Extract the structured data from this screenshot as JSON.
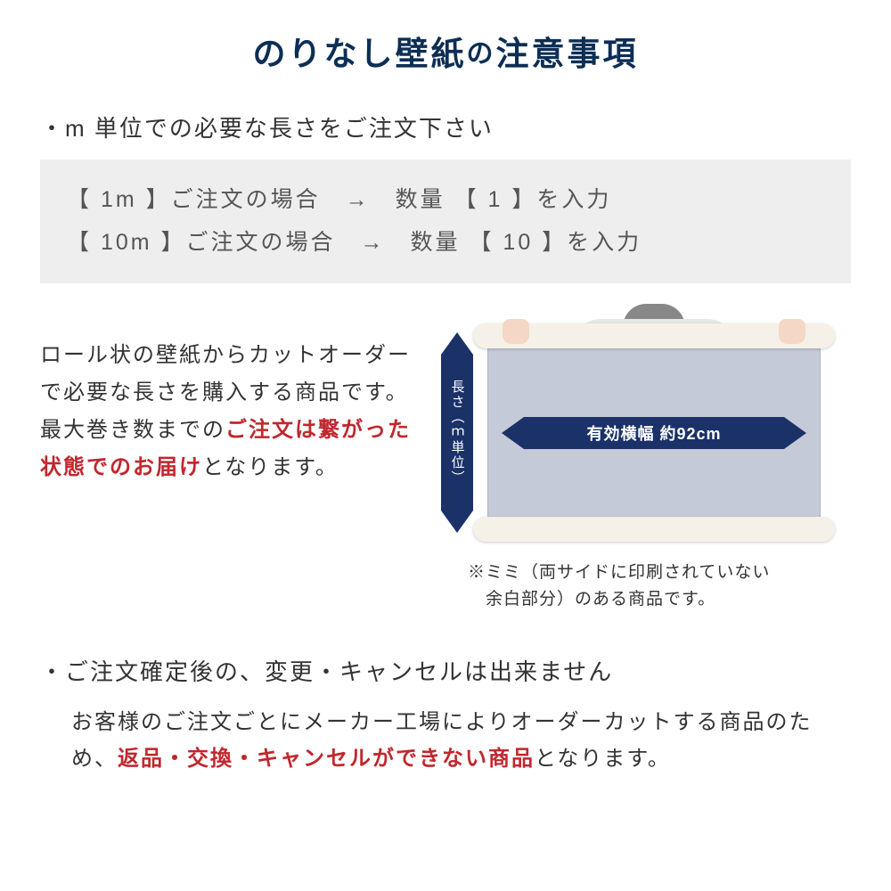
{
  "title": {
    "part1": "のりなし壁紙",
    "no": "の",
    "part2": "注意事項",
    "color": "#0d2e55"
  },
  "section1": {
    "heading": "・m 単位での必要な長さをご注文下さい",
    "example1": "【 1m 】ご注文の場合　→　数量 【 1 】を入力",
    "example2": "【 10m 】ご注文の場合　→　数量 【 10 】を入力"
  },
  "midText": {
    "line1": "ロール状の壁紙からカットオーダーで必要な長さを購入する商品です。最大巻き数までの",
    "highlight": "ご注文は繋がった状態でのお届け",
    "line2": "となります。",
    "highlightColor": "#c1272d"
  },
  "diagram": {
    "arrowColor": "#1a3268",
    "vLabel": "長さ（ｍ単位）",
    "hLabel": "有効横幅 約92cm",
    "sheetColor": "#c5cad8",
    "rollColor": "#f5f1e8",
    "vShaftHeight": 175
  },
  "note": {
    "line1": "※ミミ（両サイドに印刷されていない",
    "line2": "　余白部分）のある商品です。"
  },
  "section2": {
    "heading": "・ご注文確定後の、変更・キャンセルは出来ません",
    "body1": "お客様のご注文ごとにメーカー工場によりオーダーカットする商品のため、",
    "highlight": "返品・交換・キャンセルができない商品",
    "body2": "となります。",
    "highlightColor": "#c1272d"
  }
}
